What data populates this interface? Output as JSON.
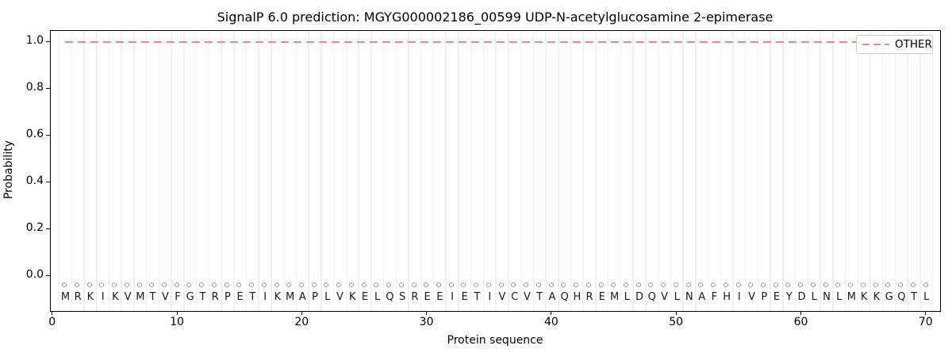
{
  "figure": {
    "title": "SignalP 6.0 prediction: MGYG000002186_00599 UDP-N-acetylglucosamine 2-epimerase"
  },
  "chart_data": {
    "type": "line",
    "title": "SignalP 6.0 prediction: MGYG000002186_00599 UDP-N-acetylglucosamine 2-epimerase",
    "xlabel": "Protein sequence",
    "ylabel": "Probability",
    "xlim": [
      -0.2,
      71.2
    ],
    "ylim": [
      -0.15,
      1.05
    ],
    "x_ticks": [
      0,
      10,
      20,
      30,
      40,
      50,
      60,
      70
    ],
    "y_ticks": [
      "0.0",
      "0.2",
      "0.4",
      "0.6",
      "0.8",
      "1.0"
    ],
    "y_tick_values": [
      0.0,
      0.2,
      0.4,
      0.6,
      0.8,
      1.0
    ],
    "grid": "vertical light-gray gridlines at every residue boundary (positions 0.5 to 70.5)",
    "legend_position": "upper right",
    "legend": {
      "entries": [
        {
          "label": "OTHER",
          "color": "#f28585",
          "style": "dashed"
        }
      ]
    },
    "series": [
      {
        "name": "OTHER",
        "line_style": "dashed",
        "color": "#f28585",
        "x_start": 1,
        "x_end": 70,
        "y_constant": 1.0,
        "x": [
          1,
          70
        ],
        "y": [
          1.0,
          1.0
        ]
      }
    ],
    "sequence": {
      "residues": "MRKIKVMTVFGTRPETIKMAPLVKELQSREEIETIVCVTAQHREMLDQVLNAFHIVPEYDLNLMKKGQTL",
      "length": 70,
      "marker_glyph": "O",
      "marker_y": -0.04,
      "marker_color": "#9e9e9e",
      "letter_y": -0.09,
      "letter_color": "#1a1a1a"
    }
  },
  "colors": {
    "background": "#ffffff",
    "spine": "#000000",
    "gridline": "#f0f0f0",
    "text": "#000000",
    "dashed_line": "#f28585",
    "marker_stroke": "#9e9e9e",
    "legend_border": "#cccccc"
  }
}
